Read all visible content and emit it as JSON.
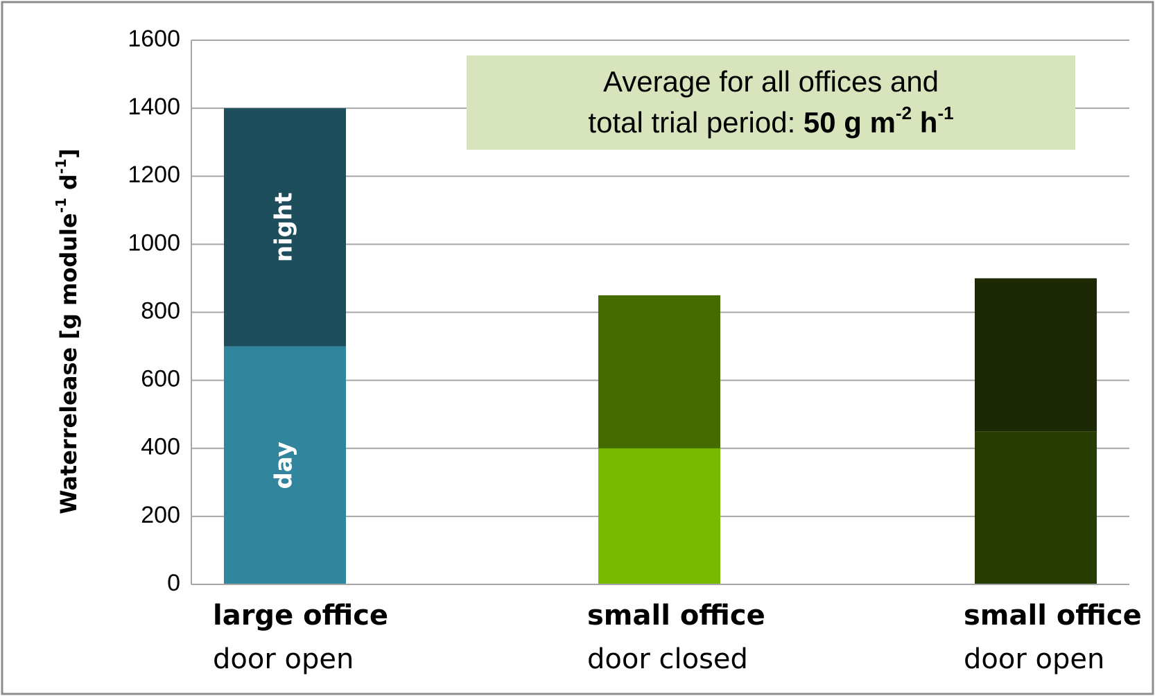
{
  "chart_data": {
    "type": "bar",
    "stacked": true,
    "categories": [
      [
        "large office",
        "door open"
      ],
      [
        "small  office",
        "door closed"
      ],
      [
        "small  office",
        "door open"
      ]
    ],
    "series": [
      {
        "name": "day",
        "values": [
          700,
          400,
          450
        ],
        "colors": [
          "#31859c",
          "#77b800",
          "#283d04"
        ]
      },
      {
        "name": "night",
        "values": [
          700,
          450,
          450
        ],
        "colors": [
          "#1e4d5c",
          "#456b00",
          "#1c2904"
        ]
      }
    ],
    "ylabel": [
      "Waterrelease [g module",
      "-1",
      " d",
      "-1",
      "]"
    ],
    "ylim": [
      0,
      1600
    ],
    "yticks": [
      0,
      200,
      400,
      600,
      800,
      1000,
      1200,
      1400,
      1600
    ],
    "grid": true,
    "annotation": {
      "line1": "Average for all offices and",
      "line2": [
        "total trial period: ",
        "50 g m",
        "-2",
        " h",
        "-1"
      ],
      "background": "#d8e4bc"
    }
  }
}
